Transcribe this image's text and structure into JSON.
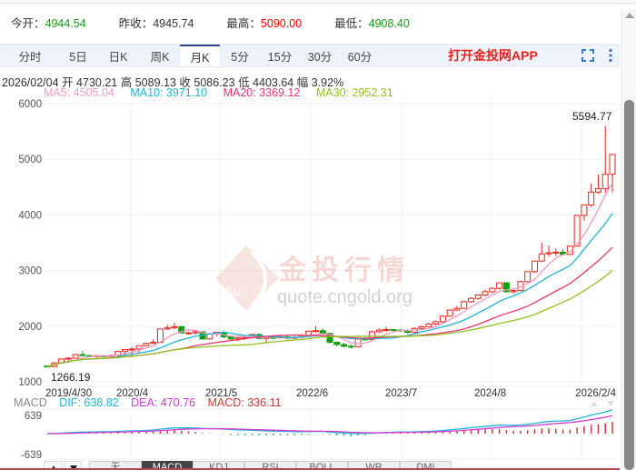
{
  "quote": {
    "open_label": "今开：",
    "open_value": "4944.54",
    "prev_close_label": "昨收：",
    "prev_close_value": "4945.74",
    "high_label": "最高：",
    "high_value": "5090.00",
    "low_label": "最低：",
    "low_value": "4908.40"
  },
  "tabs": [
    {
      "label": "分时"
    },
    {
      "label": "5日"
    },
    {
      "label": "日K"
    },
    {
      "label": "周K"
    },
    {
      "label": "月K",
      "active": true
    },
    {
      "label": "5分"
    },
    {
      "label": "15分"
    },
    {
      "label": "30分"
    },
    {
      "label": "60分"
    }
  ],
  "toolbar": {
    "app_link": "打开金投网APP",
    "fullscreen_icon": "fullscreen-icon",
    "more_icon": "more-vertical-icon"
  },
  "bar_info": {
    "date": "2026/02/04",
    "open_label": "开",
    "open": "4730.21",
    "high_label": "高",
    "high": "5089.13",
    "close_label": "收",
    "close": "5086.23",
    "low_label": "低",
    "low": "4403.64",
    "change_label": "幅",
    "change": "3.92%"
  },
  "ma": {
    "ma5": "MA5: 4505.04",
    "ma10": "MA10: 3971.10",
    "ma20": "MA20: 3369.12",
    "ma30": "MA30: 2952.31"
  },
  "macd": {
    "title": "MACD",
    "dif": "DIF: 638.82",
    "dea": "DEA: 470.76",
    "macd": "MACD: 336.11",
    "y_top": "639",
    "y_bottom": "-639"
  },
  "indicator_tabs": [
    {
      "label": "无"
    },
    {
      "label": "MACD",
      "active": true
    },
    {
      "label": "KDJ"
    },
    {
      "label": "RSI"
    },
    {
      "label": "BOLL"
    },
    {
      "label": "WR"
    },
    {
      "label": "DMI"
    }
  ],
  "watermark": {
    "title": "金投行情",
    "url": "quote.cngold.org",
    "badge": "Au"
  },
  "colors": {
    "up": "#e8231d",
    "down": "#12a012",
    "ma5": "#f29bbd",
    "ma10": "#1fb5d8",
    "ma20": "#e8366f",
    "ma30": "#93c01f",
    "dif": "#1fb5d8",
    "dea": "#d23bd1",
    "macd": "#d0393b",
    "high_text": "#ff0000",
    "low_text": "#1a9a1a"
  },
  "chart_data": {
    "type": "candlestick",
    "title": "月K",
    "ylabel": "",
    "ylim": [
      1000,
      6000
    ],
    "yticks": [
      1000,
      2000,
      3000,
      4000,
      5000,
      6000
    ],
    "xticks": [
      "2019/4/30",
      "2020/4",
      "2021/5",
      "2022/6",
      "2023/7",
      "2024/8",
      "2026/2/4"
    ],
    "annotations": [
      {
        "label": "1266.19",
        "type": "min"
      },
      {
        "label": "5594.77",
        "type": "max"
      }
    ],
    "grid": true,
    "candles_ohlc": [
      [
        1283,
        1282,
        1266,
        1275
      ],
      [
        1275,
        1350,
        1270,
        1340
      ],
      [
        1340,
        1420,
        1330,
        1410
      ],
      [
        1410,
        1440,
        1380,
        1425
      ],
      [
        1425,
        1500,
        1420,
        1490
      ],
      [
        1490,
        1560,
        1480,
        1470
      ],
      [
        1470,
        1490,
        1450,
        1462
      ],
      [
        1462,
        1480,
        1445,
        1470
      ],
      [
        1470,
        1480,
        1440,
        1455
      ],
      [
        1455,
        1490,
        1445,
        1475
      ],
      [
        1475,
        1550,
        1465,
        1545
      ],
      [
        1545,
        1590,
        1460,
        1580
      ],
      [
        1580,
        1620,
        1470,
        1590
      ],
      [
        1590,
        1660,
        1520,
        1650
      ],
      [
        1650,
        1700,
        1640,
        1690
      ],
      [
        1690,
        1760,
        1680,
        1710
      ],
      [
        1710,
        1900,
        1700,
        1950
      ],
      [
        1950,
        2020,
        1930,
        1970
      ],
      [
        1970,
        2060,
        1940,
        1990
      ],
      [
        1990,
        2010,
        1870,
        1880
      ],
      [
        1880,
        1900,
        1850,
        1880
      ],
      [
        1880,
        1930,
        1850,
        1900
      ],
      [
        1900,
        1910,
        1760,
        1770
      ],
      [
        1770,
        1880,
        1760,
        1860
      ],
      [
        1860,
        1900,
        1820,
        1890
      ],
      [
        1890,
        1920,
        1780,
        1810
      ],
      [
        1810,
        1830,
        1740,
        1770
      ],
      [
        1770,
        1790,
        1730,
        1790
      ],
      [
        1790,
        1810,
        1760,
        1800
      ],
      [
        1800,
        1860,
        1780,
        1850
      ],
      [
        1850,
        1870,
        1770,
        1780
      ],
      [
        1780,
        1830,
        1700,
        1800
      ],
      [
        1800,
        1810,
        1760,
        1790
      ],
      [
        1790,
        1830,
        1780,
        1810
      ],
      [
        1810,
        1840,
        1770,
        1785
      ],
      [
        1785,
        1850,
        1770,
        1800
      ],
      [
        1800,
        1860,
        1780,
        1830
      ],
      [
        1830,
        1920,
        1820,
        1910
      ],
      [
        1910,
        2000,
        1890,
        1920
      ],
      [
        1920,
        1960,
        1850,
        1870
      ],
      [
        1870,
        1880,
        1690,
        1710
      ],
      [
        1710,
        1730,
        1640,
        1670
      ],
      [
        1670,
        1700,
        1620,
        1640
      ],
      [
        1640,
        1670,
        1600,
        1630
      ],
      [
        1630,
        1770,
        1620,
        1770
      ],
      [
        1770,
        1800,
        1740,
        1760
      ],
      [
        1760,
        1920,
        1750,
        1900
      ],
      [
        1900,
        1960,
        1880,
        1930
      ],
      [
        1930,
        1990,
        1900,
        1940
      ],
      [
        1940,
        1950,
        1900,
        1930
      ],
      [
        1930,
        1950,
        1900,
        1920
      ],
      [
        1920,
        1940,
        1870,
        1890
      ],
      [
        1890,
        1980,
        1870,
        1960
      ],
      [
        1960,
        2010,
        1940,
        1990
      ],
      [
        1990,
        2060,
        1980,
        2040
      ],
      [
        2040,
        2100,
        2020,
        2080
      ],
      [
        2080,
        2190,
        2060,
        2180
      ],
      [
        2180,
        2300,
        2170,
        2290
      ],
      [
        2290,
        2360,
        2270,
        2320
      ],
      [
        2320,
        2460,
        2310,
        2440
      ],
      [
        2440,
        2520,
        2420,
        2500
      ],
      [
        2500,
        2570,
        2480,
        2560
      ],
      [
        2560,
        2660,
        2540,
        2620
      ],
      [
        2620,
        2700,
        2590,
        2680
      ],
      [
        2680,
        2790,
        2660,
        2780
      ],
      [
        2780,
        2740,
        2600,
        2620
      ],
      [
        2620,
        2660,
        2580,
        2640
      ],
      [
        2640,
        2820,
        2630,
        2800
      ],
      [
        2800,
        2980,
        2790,
        2980
      ],
      [
        2980,
        3180,
        2960,
        3170
      ],
      [
        3170,
        3500,
        3150,
        3300
      ],
      [
        3300,
        3450,
        3250,
        3320
      ],
      [
        3320,
        3400,
        3260,
        3330
      ],
      [
        3330,
        3390,
        3280,
        3290
      ],
      [
        3290,
        3450,
        3280,
        3440
      ],
      [
        3440,
        4000,
        3430,
        3990
      ],
      [
        3990,
        4100,
        3900,
        4180
      ],
      [
        4180,
        4560,
        4150,
        4410
      ],
      [
        4410,
        4720,
        4380,
        4470
      ],
      [
        4470,
        5594.77,
        4400,
        4730
      ],
      [
        4730.21,
        5089.13,
        4403.64,
        5086.23
      ]
    ],
    "series": [
      {
        "name": "MA5",
        "last": 4505.04
      },
      {
        "name": "MA10",
        "last": 3971.1
      },
      {
        "name": "MA20",
        "last": 3369.12
      },
      {
        "name": "MA30",
        "last": 2952.31
      }
    ],
    "macd_panel": {
      "DIF": 638.82,
      "DEA": 470.76,
      "MACD": 336.11,
      "ylim": [
        -639,
        639
      ]
    }
  }
}
